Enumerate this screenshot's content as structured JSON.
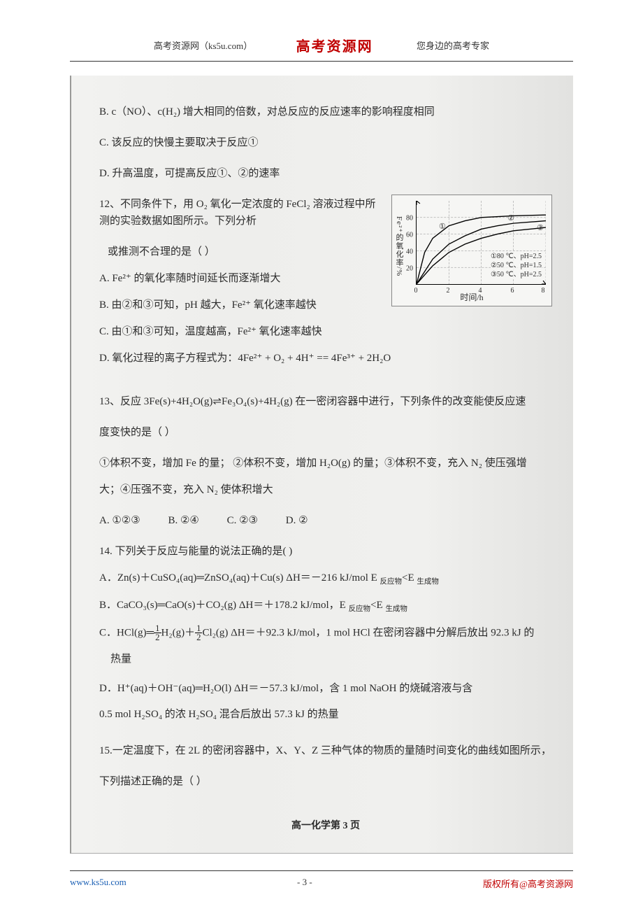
{
  "header": {
    "left": "高考资源网（ks5u.com）",
    "center": "高考资源网",
    "right": "您身边的高考专家"
  },
  "q11": {
    "optB": "B.  c（NO）、c(H₂) 增大相同的倍数，对总反应的反应速率的影响程度相同",
    "optC": "C.  该反应的快慢主要取决于反应①",
    "optD": "D.  升高温度，可提高反应①、②的速率"
  },
  "q12": {
    "stem1": "12、不同条件下，用 O₂ 氧化一定浓度的 FeCl₂ 溶液过程中所测的实验数据如图所示。下列分析",
    "stem2": "或推测不合理的是（    ）",
    "optA": "A.  Fe²⁺ 的氧化率随时间延长而逐渐增大",
    "optB": "B.  由②和③可知，pH 越大，Fe²⁺ 氧化速率越快",
    "optC": "C.  由①和③可知，温度越高，Fe²⁺ 氧化速率越快",
    "optD": "D.  氧化过程的离子方程式为：4Fe²⁺ + O₂ + 4H⁺ == 4Fe³⁺ + 2H₂O"
  },
  "chart": {
    "ylabel": "Fe²⁺的氧化率/%",
    "xlabel": "时间/h",
    "yticks": [
      20,
      40,
      60,
      80
    ],
    "xticks": [
      0,
      2,
      4,
      6,
      8
    ],
    "legend": [
      "①80 ℃、pH=2.5",
      "②50 ℃、pH=1.5",
      "③50 ℃、pH=2.5"
    ],
    "curve_labels": [
      "①",
      "②",
      "③"
    ],
    "curves": {
      "1": [
        [
          0,
          0
        ],
        [
          0.5,
          38
        ],
        [
          1,
          55
        ],
        [
          2,
          70
        ],
        [
          3,
          76
        ],
        [
          4,
          80
        ],
        [
          6,
          82
        ],
        [
          8,
          83
        ]
      ],
      "2": [
        [
          0,
          0
        ],
        [
          1,
          30
        ],
        [
          2,
          48
        ],
        [
          3,
          58
        ],
        [
          4,
          66
        ],
        [
          5,
          70
        ],
        [
          6,
          73
        ],
        [
          8,
          76
        ]
      ],
      "3": [
        [
          0,
          0
        ],
        [
          1,
          22
        ],
        [
          2,
          38
        ],
        [
          3,
          48
        ],
        [
          4,
          55
        ],
        [
          5,
          60
        ],
        [
          6,
          64
        ],
        [
          8,
          68
        ]
      ]
    },
    "y_max": 100,
    "x_max": 8,
    "stroke": "#000000",
    "grid_dash": "3,2"
  },
  "q13": {
    "stem1": "13、反应 3Fe(s)+4H₂O(g)⇌Fe₃O₄(s)+4H₂(g) 在一密闭容器中进行，下列条件的改变能使反应速",
    "stem2": "度变快的是（    ）",
    "conds": "①体积不变，增加 Fe 的量；   ②体积不变，增加 H₂O(g) 的量；③体积不变，充入 N₂ 使压强增",
    "conds2": "大；④压强不变，充入 N₂ 使体积增大",
    "A": "A.  ①②③",
    "B": "B.  ②④",
    "C": "C.  ②③",
    "D": "D.  ②"
  },
  "q14": {
    "stem": "14.  下列关于反应与能量的说法正确的是(     )",
    "A_pre": "A．Zn(s)＋CuSO₄(aq)═ZnSO₄(aq)＋Cu(s)    ΔH＝－216 kJ/mol   E ",
    "A_sub1": "反应物",
    "A_mid": "<E ",
    "A_sub2": "生成物",
    "B_pre": "B．CaCO₃(s)═CaO(s)＋CO₂(g)    ΔH＝＋178.2 kJ/mol，E ",
    "B_sub1": "反应物",
    "B_mid": "<E ",
    "B_sub2": "生成物",
    "C1": "C．HCl(g)═",
    "C1b": "H₂(g)＋",
    "C1c": "Cl₂(g)   ΔH＝＋92.3 kJ/mol，1 mol HCl 在密闭容器中分解后放出 92.3 kJ 的",
    "C2": "热量",
    "D1": "D．H⁺(aq)＋OH⁻(aq)═H₂O(l)   ΔH＝－57.3 kJ/mol，含 1 mol NaOH 的烧碱溶液与含",
    "D2": "0.5 mol H₂SO₄ 的浓 H₂SO₄ 混合后放出 57.3 kJ 的热量"
  },
  "q15": {
    "stem1": "15.一定温度下，在 2L 的密闭容器中，X、Y、Z 三种气体的物质的量随时间变化的曲线如图所示，",
    "stem2": "下列描述正确的是（    ）"
  },
  "page_number": "高一化学第  3  页",
  "footer": {
    "left": "www.ks5u.com",
    "center": "- 3 -",
    "right": "版权所有@高考资源网"
  }
}
